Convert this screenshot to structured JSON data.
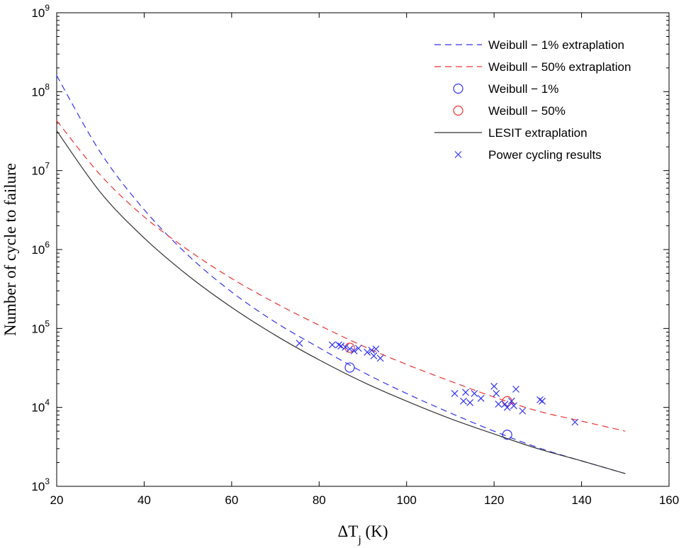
{
  "chart_data": {
    "type": "line",
    "xlabel": "ΔT",
    "xlabel_sub": "j",
    "xlabel_unit": " (K)",
    "ylabel": "Number of cycle to failure",
    "xlim": [
      20,
      160
    ],
    "ylim": [
      1000,
      1000000000
    ],
    "y_scale": "log",
    "x_ticks": [
      20,
      40,
      60,
      80,
      100,
      120,
      140,
      160
    ],
    "y_ticks": [
      {
        "base": "10",
        "exp": "3",
        "value": 1000
      },
      {
        "base": "10",
        "exp": "4",
        "value": 10000
      },
      {
        "base": "10",
        "exp": "5",
        "value": 100000
      },
      {
        "base": "10",
        "exp": "6",
        "value": 1000000
      },
      {
        "base": "10",
        "exp": "7",
        "value": 10000000
      },
      {
        "base": "10",
        "exp": "8",
        "value": 100000000
      },
      {
        "base": "10",
        "exp": "9",
        "value": 1000000000
      }
    ],
    "grid": false,
    "legend_position": "top-right",
    "series": [
      {
        "name": "Weibull − 1% extraplation",
        "kind": "dashed-line",
        "color": "#3333ee",
        "x": [
          20,
          30,
          40,
          50,
          60,
          70,
          80,
          90,
          100,
          110,
          120,
          130,
          140,
          150
        ],
        "y": [
          160000000,
          17000000,
          3200000,
          850000,
          290000,
          120000,
          57000,
          28000,
          15000,
          8500,
          5000,
          3100,
          2100,
          1450
        ]
      },
      {
        "name": "Weibull − 50% extraplation",
        "kind": "dashed-line",
        "color": "#ee3333",
        "x": [
          20,
          30,
          40,
          50,
          60,
          70,
          80,
          90,
          100,
          110,
          120,
          130,
          140,
          150
        ],
        "y": [
          43000000,
          8800000,
          2600000,
          990000,
          430000,
          210000,
          110000,
          60000,
          35000,
          21500,
          13500,
          9000,
          6700,
          5000
        ]
      },
      {
        "name": "Weibull − 1%",
        "kind": "circle",
        "color": "#3333ee",
        "x": [
          87,
          123
        ],
        "y": [
          32000,
          4500
        ]
      },
      {
        "name": "Weibull − 50%",
        "kind": "circle",
        "color": "#ee3333",
        "x": [
          87,
          123
        ],
        "y": [
          57000,
          12000
        ]
      },
      {
        "name": "LESIT extraplation",
        "kind": "solid-line",
        "color": "#333333",
        "x": [
          20,
          30,
          40,
          50,
          60,
          70,
          80,
          90,
          100,
          110,
          120,
          130,
          140,
          150
        ],
        "y": [
          32000000,
          5300000,
          1400000,
          470000,
          185000,
          82000,
          40000,
          21000,
          12000,
          7200,
          4600,
          3000,
          2100,
          1450
        ]
      },
      {
        "name": "Power cycling results",
        "kind": "cross",
        "color": "#3333ee",
        "x": [
          75.5,
          83,
          84.5,
          85,
          86,
          87,
          88,
          89,
          91,
          92,
          92.5,
          93,
          94,
          111,
          113,
          113.5,
          114.5,
          115.5,
          117,
          120,
          120.5,
          121,
          122.5,
          123,
          124,
          124.5,
          125,
          126.5,
          130.5,
          131,
          138.5
        ],
        "y": [
          65000,
          62000,
          62000,
          60000,
          58000,
          55000,
          52000,
          56000,
          50000,
          53000,
          45000,
          55000,
          42000,
          15000,
          12000,
          15500,
          11500,
          15000,
          13000,
          18500,
          15000,
          11000,
          11000,
          10000,
          12000,
          10500,
          17000,
          9000,
          12500,
          12000,
          6500
        ]
      }
    ]
  }
}
